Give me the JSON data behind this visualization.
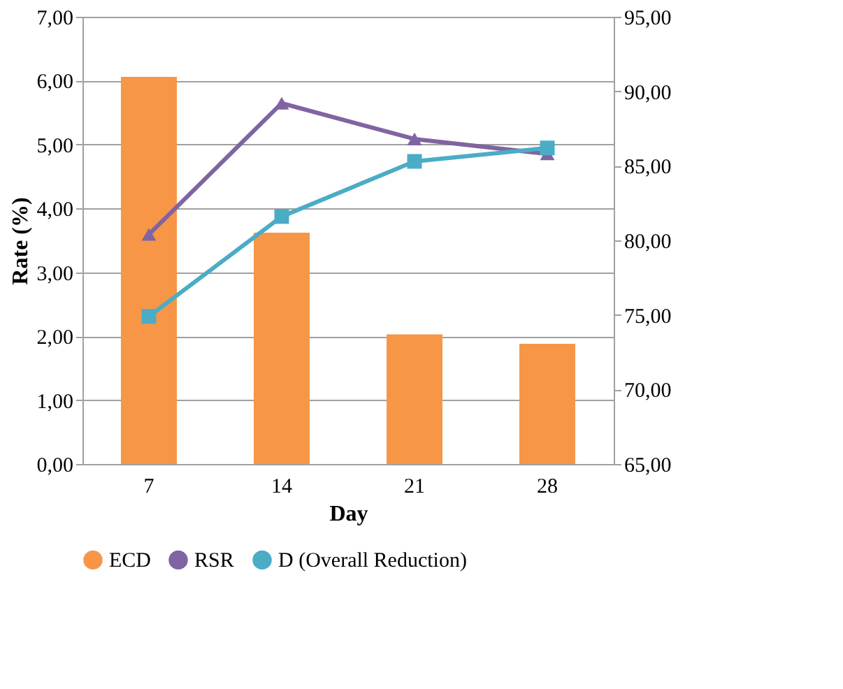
{
  "chart_data": {
    "type": "bar",
    "xlabel": "Day",
    "ylabel": "Rate (%)",
    "categories": [
      "7",
      "14",
      "21",
      "28"
    ],
    "series": [
      {
        "name": "ECD",
        "color": "#f79646",
        "values": [
          6.06,
          3.62,
          2.03,
          1.88
        ]
      },
      {
        "name": "RSR",
        "type": "line",
        "axis": "y2",
        "marker": "triangle",
        "color": "#8064a2",
        "values": [
          80.4,
          89.2,
          86.8,
          85.8
        ]
      },
      {
        "name": "D (Overall Reduction)",
        "type": "line",
        "axis": "y2",
        "marker": "square",
        "color": "#4bacc6",
        "values": [
          74.9,
          81.6,
          85.3,
          86.2
        ]
      }
    ],
    "ylim": [
      0,
      7
    ],
    "yticks": [
      {
        "value": 0,
        "label": "0,00"
      },
      {
        "value": 1,
        "label": "1,00"
      },
      {
        "value": 2,
        "label": "2,00"
      },
      {
        "value": 3,
        "label": "3,00"
      },
      {
        "value": 4,
        "label": "4,00"
      },
      {
        "value": 5,
        "label": "5,00"
      },
      {
        "value": 6,
        "label": "6,00"
      },
      {
        "value": 7,
        "label": "7,00"
      }
    ],
    "y2lim": [
      65,
      95
    ],
    "y2ticks": [
      {
        "value": 65,
        "label": "65,00"
      },
      {
        "value": 70,
        "label": "70,00"
      },
      {
        "value": 75,
        "label": "75,00"
      },
      {
        "value": 80,
        "label": "80,00"
      },
      {
        "value": 85,
        "label": "85,00"
      },
      {
        "value": 90,
        "label": "90,00"
      },
      {
        "value": 95,
        "label": "95,00"
      }
    ],
    "grid": "y",
    "legend": "bottom"
  }
}
